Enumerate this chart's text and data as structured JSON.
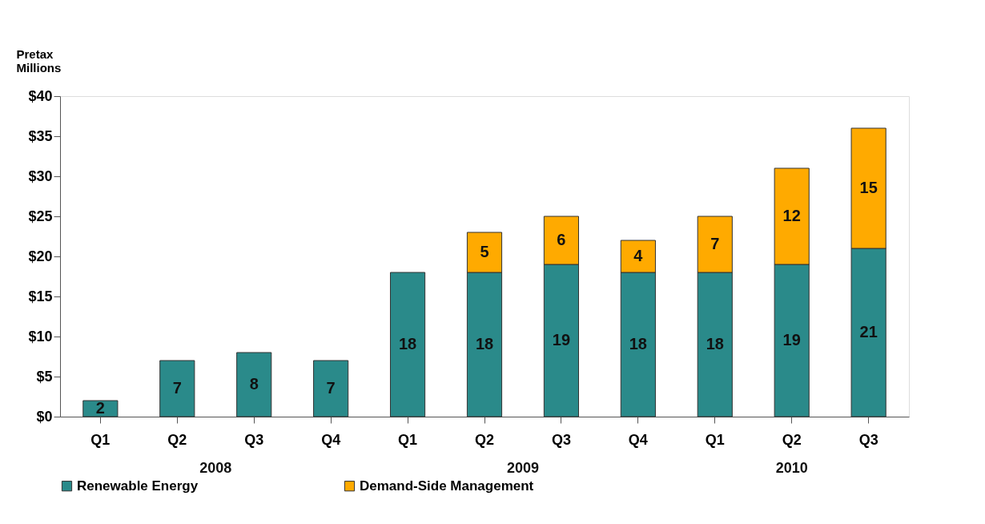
{
  "chart_data": {
    "type": "bar",
    "stacked": true,
    "ylabel": "Pretax\nMillions",
    "categories": [
      "Q1",
      "Q2",
      "Q3",
      "Q4",
      "Q1",
      "Q2",
      "Q3",
      "Q4",
      "Q1",
      "Q2",
      "Q3"
    ],
    "annotations": [
      "2008",
      "2009",
      "2010"
    ],
    "series": [
      {
        "name": "Renewable Energy",
        "color": "#2a8a8a",
        "values": [
          2,
          7,
          8,
          7,
          18,
          18,
          19,
          18,
          18,
          19,
          21
        ]
      },
      {
        "name": "Demand-Side Management",
        "color": "#ffaa00",
        "values": [
          null,
          null,
          null,
          null,
          null,
          5,
          6,
          4,
          7,
          12,
          15
        ]
      }
    ],
    "ylim": [
      0,
      40
    ],
    "yticks": [
      {
        "value": 0,
        "label": "$0"
      },
      {
        "value": 5,
        "label": "$5"
      },
      {
        "value": 10,
        "label": "$10"
      },
      {
        "value": 15,
        "label": "$15"
      },
      {
        "value": 20,
        "label": "$20"
      },
      {
        "value": 25,
        "label": "$25"
      },
      {
        "value": 30,
        "label": "$30"
      },
      {
        "value": 35,
        "label": "$35"
      },
      {
        "value": 40,
        "label": "$40"
      }
    ],
    "data_labels": true,
    "grid": false,
    "legend": "bottom"
  }
}
